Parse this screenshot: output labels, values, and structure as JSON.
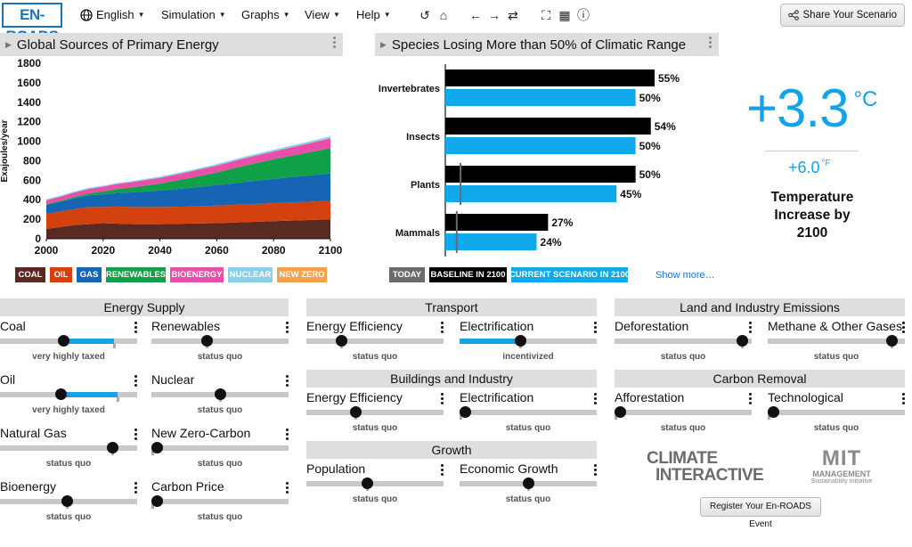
{
  "topbar": {
    "logo": "EN-ROADS",
    "language": "English",
    "menus": [
      "Simulation",
      "Graphs",
      "View",
      "Help"
    ],
    "share_label": "Share Your Scenario"
  },
  "energy_panel": {
    "title": "Global Sources of Primary Energy",
    "y_label": "Exajoules/year",
    "legend": [
      {
        "label": "COAL",
        "color": "#5a2a22"
      },
      {
        "label": "OIL",
        "color": "#d2410e"
      },
      {
        "label": "GAS",
        "color": "#1565b4"
      },
      {
        "label": "RENEWABLES",
        "color": "#10a048"
      },
      {
        "label": "BIOENERGY",
        "color": "#e94fa8"
      },
      {
        "label": "NUCLEAR",
        "color": "#8ccfe8"
      },
      {
        "label": "NEW ZERO",
        "color": "#f5a04b"
      }
    ]
  },
  "chart_data": [
    {
      "type": "area",
      "title": "Global Sources of Primary Energy",
      "xlabel": "",
      "ylabel": "Exajoules/year",
      "x": [
        2000,
        2005,
        2010,
        2015,
        2020,
        2025,
        2030,
        2040,
        2050,
        2060,
        2070,
        2080,
        2090,
        2100
      ],
      "xlim": [
        2000,
        2100
      ],
      "ylim": [
        0,
        1800
      ],
      "x_ticks": [
        2000,
        2020,
        2040,
        2060,
        2080,
        2100
      ],
      "y_ticks": [
        0,
        200,
        400,
        600,
        800,
        1000,
        1200,
        1400,
        1600,
        1800
      ],
      "series": [
        {
          "name": "COAL",
          "color": "#5a2a22",
          "values": [
            100,
            120,
            140,
            150,
            160,
            155,
            150,
            150,
            155,
            160,
            170,
            180,
            190,
            200
          ]
        },
        {
          "name": "OIL",
          "color": "#d2410e",
          "values": [
            155,
            160,
            165,
            175,
            165,
            175,
            175,
            175,
            175,
            180,
            182,
            185,
            187,
            190
          ]
        },
        {
          "name": "GAS",
          "color": "#1565b4",
          "values": [
            90,
            100,
            110,
            120,
            130,
            140,
            150,
            170,
            190,
            210,
            230,
            250,
            265,
            280
          ]
        },
        {
          "name": "RENEWABLES",
          "color": "#10a048",
          "values": [
            10,
            10,
            15,
            20,
            30,
            40,
            50,
            70,
            100,
            130,
            170,
            200,
            230,
            260
          ]
        },
        {
          "name": "BIOENERGY",
          "color": "#e94fa8",
          "values": [
            40,
            42,
            45,
            47,
            50,
            52,
            55,
            60,
            65,
            70,
            75,
            80,
            90,
            100
          ]
        },
        {
          "name": "NUCLEAR",
          "color": "#8ccfe8",
          "values": [
            10,
            10,
            10,
            10,
            10,
            10,
            10,
            12,
            13,
            15,
            16,
            17,
            18,
            20
          ]
        },
        {
          "name": "NEW ZERO",
          "color": "#f5a04b",
          "values": [
            0,
            0,
            0,
            0,
            0,
            0,
            0,
            0,
            0,
            0,
            0,
            0,
            0,
            0
          ]
        }
      ]
    },
    {
      "type": "bar",
      "title": "Species Losing More than 50% of Climatic Range",
      "categories": [
        "Invertebrates",
        "Insects",
        "Plants",
        "Mammals"
      ],
      "series": [
        {
          "name": "BASELINE IN 2100",
          "color": "#000000",
          "values": [
            55,
            54,
            50,
            27
          ]
        },
        {
          "name": "CURRENT SCENARIO IN 2100",
          "color": "#12a8ec",
          "values": [
            50,
            50,
            45,
            24
          ]
        }
      ],
      "today_markers": [
        null,
        null,
        4,
        3
      ],
      "xlim": [
        0,
        55
      ]
    }
  ],
  "species_panel": {
    "title": "Species Losing More than 50% of Climatic Range",
    "categories": [
      "Invertebrates",
      "Insects",
      "Plants",
      "Mammals"
    ],
    "baseline_labels": [
      "55%",
      "54%",
      "50%",
      "27%"
    ],
    "current_labels": [
      "50%",
      "50%",
      "45%",
      "24%"
    ],
    "legend_today": "TODAY",
    "legend_baseline": "BASELINE IN 2100",
    "legend_current": "CURRENT SCENARIO IN 2100",
    "show_more": "Show more…"
  },
  "temperature": {
    "value_c": "+3.3",
    "unit_c": "°C",
    "value_f": "+6.0",
    "unit_f": "°F",
    "caption": "Temperature Increase by 2100"
  },
  "sections": {
    "energy_supply": "Energy Supply",
    "transport": "Transport",
    "buildings": "Buildings and Industry",
    "growth": "Growth",
    "land": "Land and Industry Emissions",
    "removal": "Carbon Removal"
  },
  "sliders": {
    "coal": {
      "label": "Coal",
      "status": "very highly taxed",
      "value": 0.46
    },
    "renewables": {
      "label": "Renewables",
      "status": "status quo",
      "value": 0.4
    },
    "oil": {
      "label": "Oil",
      "status": "very highly taxed",
      "value": 0.44
    },
    "nuclear": {
      "label": "Nuclear",
      "status": "status quo",
      "value": 0.5
    },
    "natural_gas": {
      "label": "Natural Gas",
      "status": "status quo",
      "value": 0.82
    },
    "new_zero_carbon": {
      "label": "New Zero-Carbon",
      "status": "status quo",
      "value": 0.0
    },
    "bioenergy": {
      "label": "Bioenergy",
      "status": "status quo",
      "value": 0.49
    },
    "carbon_price": {
      "label": "Carbon Price",
      "status": "status quo",
      "value": 0.0
    },
    "transport_efficiency": {
      "label": "Energy Efficiency",
      "status": "status quo",
      "value": 0.25
    },
    "transport_electrification": {
      "label": "Electrification",
      "status": "incentivized",
      "value": 0.44
    },
    "buildings_efficiency": {
      "label": "Energy Efficiency",
      "status": "status quo",
      "value": 0.36
    },
    "buildings_electrification": {
      "label": "Electrification",
      "status": "status quo",
      "value": 0.0
    },
    "population": {
      "label": "Population",
      "status": "status quo",
      "value": 0.44
    },
    "economic_growth": {
      "label": "Economic Growth",
      "status": "status quo",
      "value": 0.5
    },
    "deforestation": {
      "label": "Deforestation",
      "status": "status quo",
      "value": 0.93
    },
    "methane": {
      "label": "Methane & Other Gases",
      "status": "status quo",
      "value": 0.9
    },
    "afforestation": {
      "label": "Afforestation",
      "status": "status quo",
      "value": 0.0
    },
    "technological": {
      "label": "Technological",
      "status": "status quo",
      "value": 0.0
    }
  },
  "logos": {
    "climate_interactive_line1": "CLIMATE",
    "climate_interactive_line2": "INTERACTIVE",
    "mit": "MIT",
    "mit_line2": "MANAGEMENT",
    "mit_line3": "Sustainability Initiative"
  },
  "register_label": "Register Your En-ROADS Event"
}
